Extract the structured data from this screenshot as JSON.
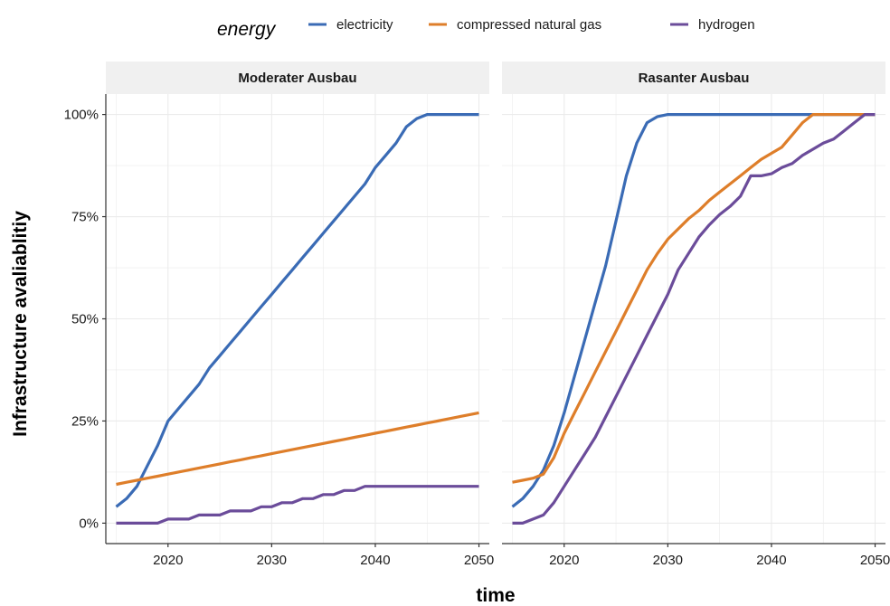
{
  "chart_data": {
    "type": "line",
    "legend": {
      "title": "energy",
      "position": "top"
    },
    "xlabel": "time",
    "ylabel": "Infrastructure avaliablitiy",
    "xlim": [
      2014,
      2051
    ],
    "ylim": [
      -0.05,
      1.05
    ],
    "x_ticks": [
      2020,
      2030,
      2040,
      2050
    ],
    "y_ticks": [
      0,
      0.25,
      0.5,
      0.75,
      1.0
    ],
    "y_tick_labels": [
      "0%",
      "25%",
      "50%",
      "75%",
      "100%"
    ],
    "grid": true,
    "colors": {
      "electricity": "#3a6bb5",
      "compressed natural gas": "#de7e2a",
      "hydrogen": "#6b4c9a",
      "grid": "#ebebeb",
      "strip_bg": "#f0f0f0",
      "axis": "#333333"
    },
    "series_names": [
      "electricity",
      "compressed natural gas",
      "hydrogen"
    ],
    "panels": [
      {
        "title": "Moderater Ausbau",
        "x": [
          2015,
          2016,
          2017,
          2018,
          2019,
          2020,
          2021,
          2022,
          2023,
          2024,
          2025,
          2026,
          2027,
          2028,
          2029,
          2030,
          2031,
          2032,
          2033,
          2034,
          2035,
          2036,
          2037,
          2038,
          2039,
          2040,
          2041,
          2042,
          2043,
          2044,
          2045,
          2046,
          2047,
          2048,
          2049,
          2050
        ],
        "series": [
          {
            "name": "electricity",
            "values": [
              0.04,
              0.06,
              0.09,
              0.14,
              0.19,
              0.25,
              0.28,
              0.31,
              0.34,
              0.38,
              0.41,
              0.44,
              0.47,
              0.5,
              0.53,
              0.56,
              0.59,
              0.62,
              0.65,
              0.68,
              0.71,
              0.74,
              0.77,
              0.8,
              0.83,
              0.87,
              0.9,
              0.93,
              0.97,
              0.99,
              1.0,
              1.0,
              1.0,
              1.0,
              1.0,
              1.0
            ]
          },
          {
            "name": "compressed natural gas",
            "values": [
              0.095,
              0.1,
              0.105,
              0.11,
              0.115,
              0.12,
              0.125,
              0.13,
              0.135,
              0.14,
              0.145,
              0.15,
              0.155,
              0.16,
              0.165,
              0.17,
              0.175,
              0.18,
              0.185,
              0.19,
              0.195,
              0.2,
              0.205,
              0.21,
              0.215,
              0.22,
              0.225,
              0.23,
              0.235,
              0.24,
              0.245,
              0.25,
              0.255,
              0.26,
              0.265,
              0.27
            ]
          },
          {
            "name": "hydrogen",
            "values": [
              0.0,
              0.0,
              0.0,
              0.0,
              0.0,
              0.01,
              0.01,
              0.01,
              0.02,
              0.02,
              0.02,
              0.03,
              0.03,
              0.03,
              0.04,
              0.04,
              0.05,
              0.05,
              0.06,
              0.06,
              0.07,
              0.07,
              0.08,
              0.08,
              0.09,
              0.09,
              0.09,
              0.09,
              0.09,
              0.09,
              0.09,
              0.09,
              0.09,
              0.09,
              0.09,
              0.09
            ]
          }
        ]
      },
      {
        "title": "Rasanter Ausbau",
        "x": [
          2015,
          2016,
          2017,
          2018,
          2019,
          2020,
          2021,
          2022,
          2023,
          2024,
          2025,
          2026,
          2027,
          2028,
          2029,
          2030,
          2031,
          2032,
          2033,
          2034,
          2035,
          2036,
          2037,
          2038,
          2039,
          2040,
          2041,
          2042,
          2043,
          2044,
          2045,
          2046,
          2047,
          2048,
          2049,
          2050
        ],
        "series": [
          {
            "name": "electricity",
            "values": [
              0.04,
              0.06,
              0.09,
              0.13,
              0.19,
              0.27,
              0.36,
              0.45,
              0.54,
              0.63,
              0.74,
              0.85,
              0.93,
              0.98,
              0.995,
              1.0,
              1.0,
              1.0,
              1.0,
              1.0,
              1.0,
              1.0,
              1.0,
              1.0,
              1.0,
              1.0,
              1.0,
              1.0,
              1.0,
              1.0,
              1.0,
              1.0,
              1.0,
              1.0,
              1.0,
              1.0
            ]
          },
          {
            "name": "compressed natural gas",
            "values": [
              0.1,
              0.105,
              0.11,
              0.12,
              0.16,
              0.22,
              0.27,
              0.32,
              0.37,
              0.42,
              0.47,
              0.52,
              0.57,
              0.62,
              0.66,
              0.695,
              0.72,
              0.745,
              0.765,
              0.79,
              0.81,
              0.83,
              0.85,
              0.87,
              0.89,
              0.905,
              0.92,
              0.95,
              0.98,
              1.0,
              1.0,
              1.0,
              1.0,
              1.0,
              1.0,
              1.0
            ]
          },
          {
            "name": "hydrogen",
            "values": [
              0.0,
              0.0,
              0.01,
              0.02,
              0.05,
              0.09,
              0.13,
              0.17,
              0.21,
              0.26,
              0.31,
              0.36,
              0.41,
              0.46,
              0.51,
              0.56,
              0.62,
              0.66,
              0.7,
              0.73,
              0.755,
              0.775,
              0.8,
              0.85,
              0.85,
              0.855,
              0.87,
              0.88,
              0.9,
              0.915,
              0.93,
              0.94,
              0.96,
              0.98,
              1.0,
              1.0
            ]
          }
        ]
      }
    ]
  }
}
